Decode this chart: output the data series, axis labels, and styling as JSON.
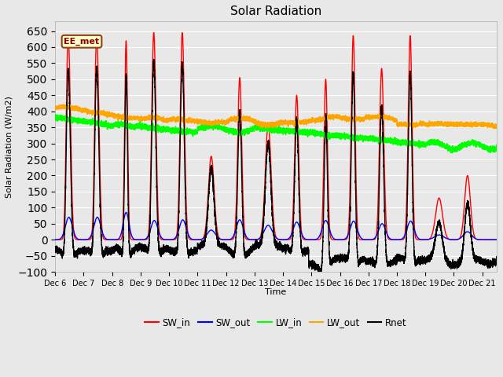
{
  "title": "Solar Radiation",
  "ylabel": "Solar Radiation (W/m2)",
  "xlabel": "Time",
  "ylim": [
    -100,
    680
  ],
  "yticks": [
    -100,
    -50,
    0,
    50,
    100,
    150,
    200,
    250,
    300,
    350,
    400,
    450,
    500,
    550,
    600,
    650
  ],
  "xlim": [
    0,
    15.5
  ],
  "xtick_labels": [
    "Dec 6",
    "Dec 7",
    "Dec 8",
    "Dec 9",
    "Dec 10",
    "Dec 11",
    "Dec 12",
    "Dec 13",
    "Dec 14",
    "Dec 15",
    "Dec 16",
    "Dec 17",
    "Dec 18",
    "Dec 19",
    "Dec 20",
    "Dec 21"
  ],
  "xtick_positions": [
    0,
    1,
    2,
    3,
    4,
    5,
    6,
    7,
    8,
    9,
    10,
    11,
    12,
    13,
    14,
    15
  ],
  "colors": {
    "SW_in": "#FF0000",
    "SW_out": "#0000FF",
    "LW_in": "#00FF00",
    "LW_out": "#FFA500",
    "Rnet": "#000000"
  },
  "lw": 1.0,
  "annotation_text": "EE_met",
  "bg_color": "#E8E8E8",
  "grid_color": "#FFFFFF"
}
